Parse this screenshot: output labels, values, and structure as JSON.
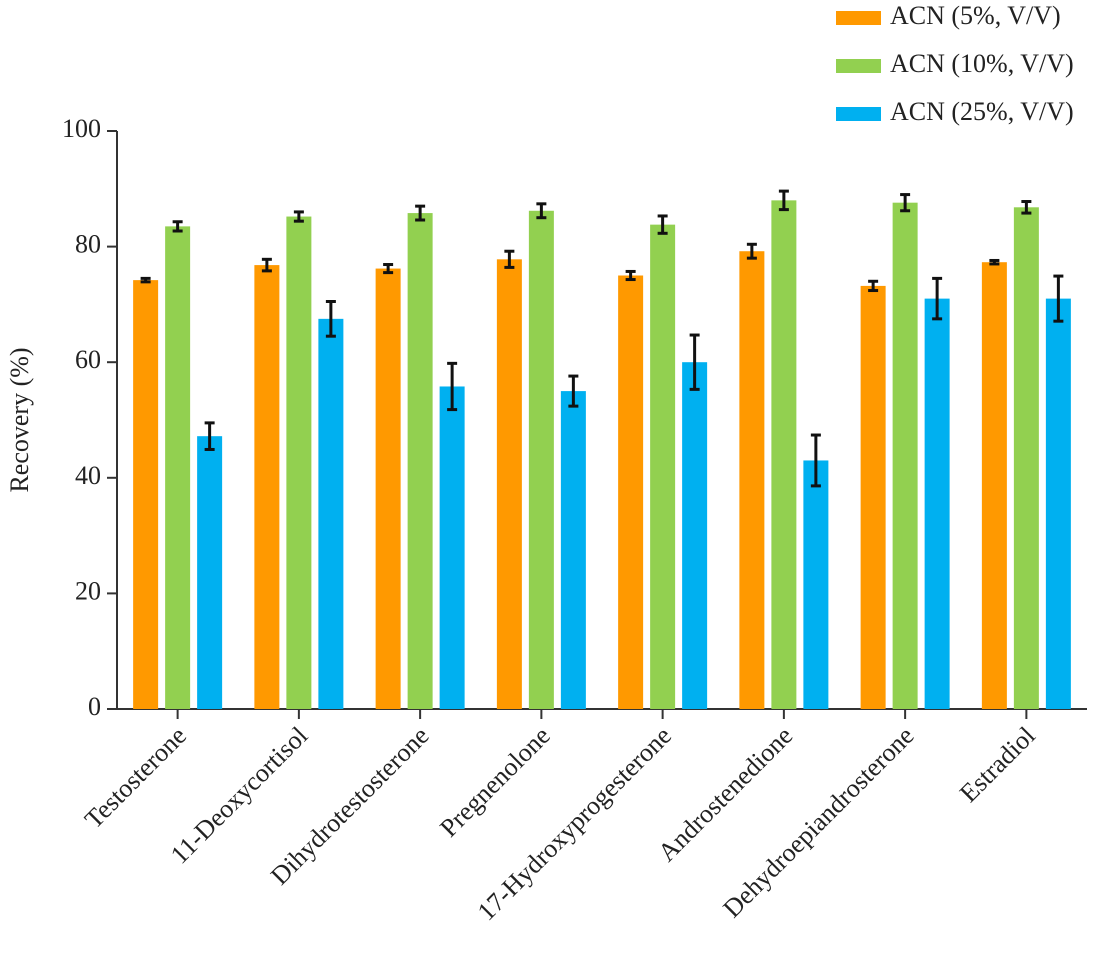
{
  "chart_data": {
    "type": "bar",
    "y_label": "Recovery (%)",
    "categories": [
      "Testosterone",
      "11-Deoxycortisol",
      "Dihydrotestosterone",
      "Pregnenolone",
      "17-Hydroxyprogesterone",
      "Androstenedione",
      "Dehydroepiandrosterone",
      "Estradiol"
    ],
    "series": [
      {
        "name": "ACN (5%, V/V)",
        "color": "#ff9900",
        "values": [
          74.2,
          76.8,
          76.2,
          77.8,
          75.0,
          79.2,
          73.2,
          77.3
        ],
        "errors": [
          0.3,
          1.0,
          0.7,
          1.4,
          0.7,
          1.2,
          0.8,
          0.3
        ]
      },
      {
        "name": "ACN (10%, V/V)",
        "color": "#92d050",
        "values": [
          83.5,
          85.2,
          85.8,
          86.2,
          83.8,
          88.0,
          87.6,
          86.8
        ],
        "errors": [
          0.8,
          0.8,
          1.2,
          1.2,
          1.5,
          1.6,
          1.4,
          1.0
        ]
      },
      {
        "name": "ACN (25%, V/V)",
        "color": "#00b0f0",
        "values": [
          47.2,
          67.5,
          55.8,
          55.0,
          60.0,
          43.0,
          71.0,
          71.0
        ],
        "errors": [
          2.3,
          3.0,
          4.0,
          2.6,
          4.7,
          4.4,
          3.5,
          3.9
        ]
      }
    ],
    "ylim": [
      0,
      100
    ],
    "yticks": [
      0,
      20,
      40,
      60,
      80,
      100
    ],
    "legend": "top-right"
  }
}
